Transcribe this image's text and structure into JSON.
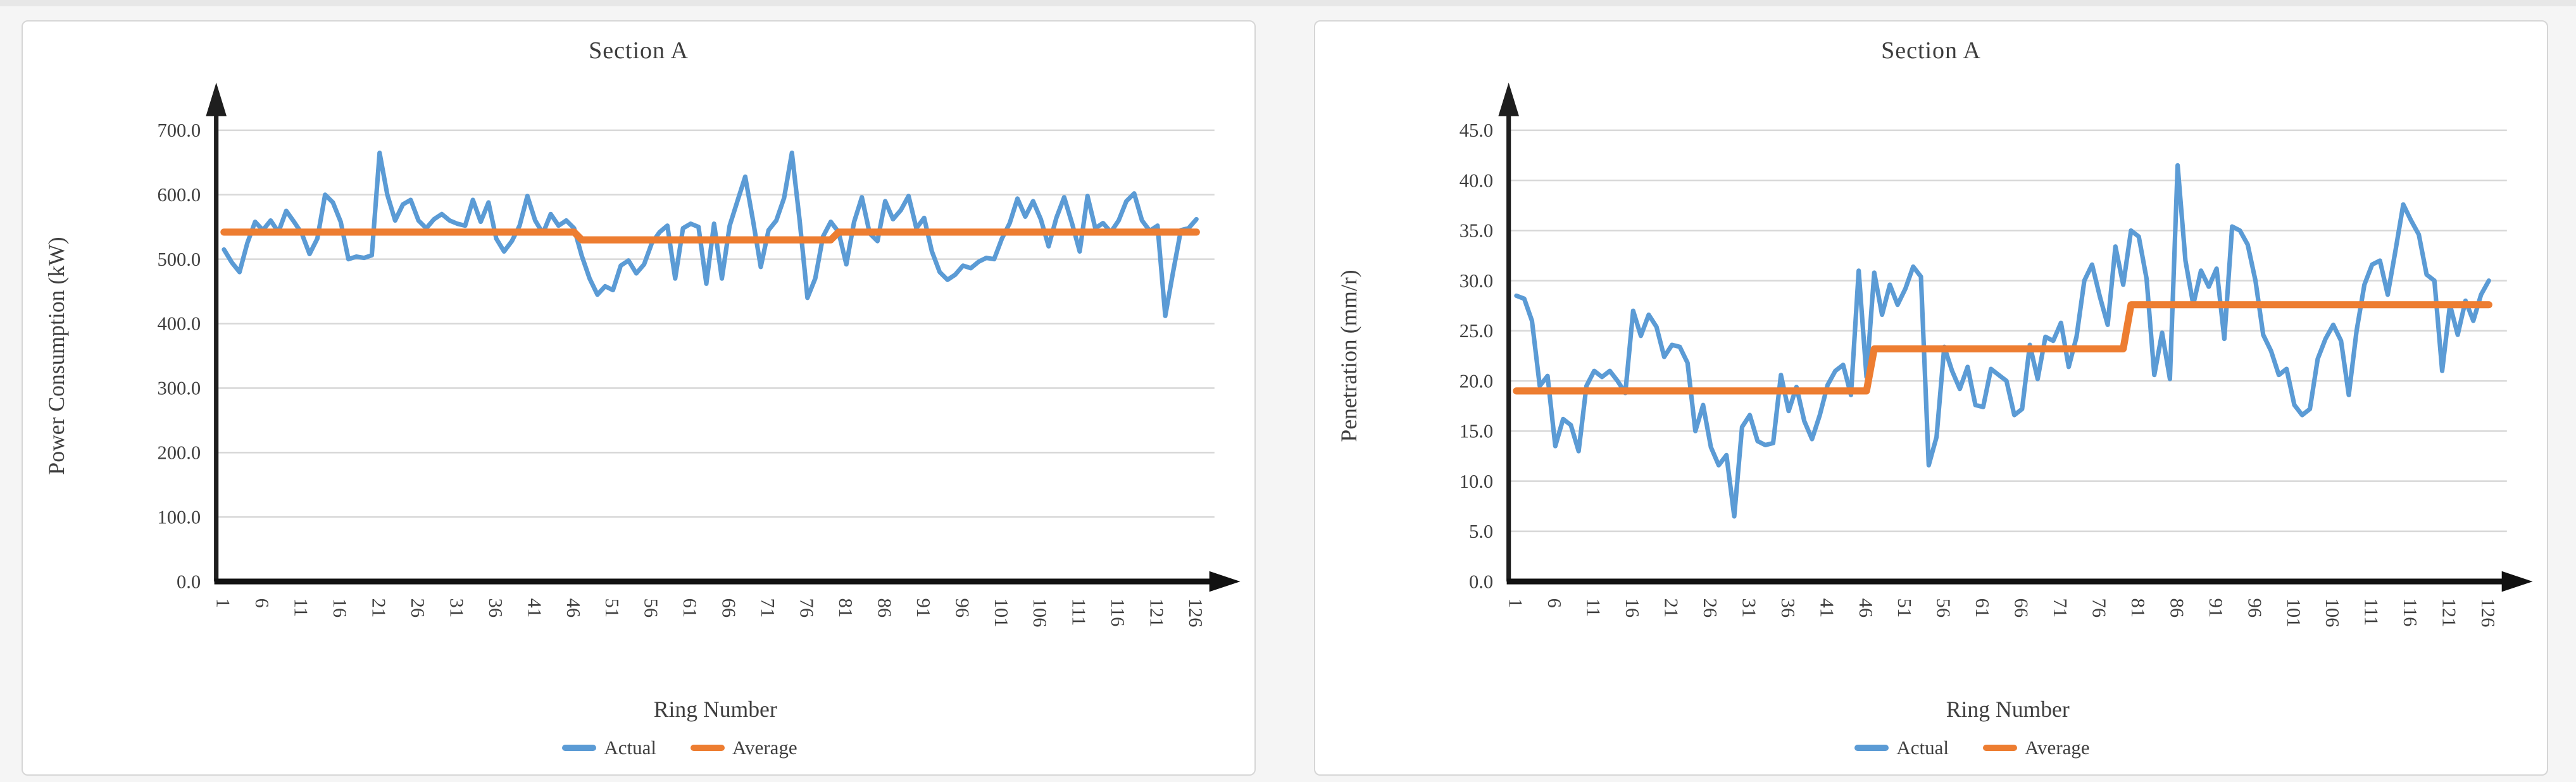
{
  "chart_data": [
    {
      "type": "line",
      "title": "Section A",
      "xlabel": "Ring Number",
      "ylabel": "Power Consumption (kW)",
      "x_range": [
        1,
        126
      ],
      "ylim": [
        0,
        700
      ],
      "grid": true,
      "legend_position": "bottom",
      "ytick_labels": [
        "0.0",
        "100.0",
        "200.0",
        "300.0",
        "400.0",
        "500.0",
        "600.0",
        "700.0"
      ],
      "xtick_labels": [
        "1",
        "6",
        "11",
        "16",
        "21",
        "26",
        "31",
        "36",
        "41",
        "46",
        "51",
        "56",
        "61",
        "66",
        "71",
        "76",
        "81",
        "86",
        "91",
        "96",
        "101",
        "106",
        "111",
        "116",
        "121",
        "126"
      ],
      "series": [
        {
          "name": "Actual",
          "color": "#5B9BD5",
          "values": [
            515,
            495,
            480,
            525,
            558,
            545,
            560,
            542,
            575,
            558,
            540,
            508,
            532,
            600,
            588,
            558,
            500,
            504,
            502,
            506,
            665,
            600,
            560,
            585,
            592,
            560,
            548,
            562,
            570,
            560,
            555,
            552,
            592,
            558,
            588,
            532,
            512,
            528,
            552,
            598,
            560,
            540,
            570,
            552,
            560,
            548,
            505,
            470,
            445,
            458,
            452,
            490,
            498,
            478,
            492,
            525,
            542,
            552,
            470,
            548,
            555,
            550,
            462,
            555,
            470,
            552,
            590,
            628,
            560,
            488,
            545,
            560,
            595,
            665,
            560,
            440,
            470,
            535,
            558,
            542,
            492,
            558,
            596,
            540,
            528,
            590,
            562,
            576,
            598,
            548,
            564,
            512,
            480,
            468,
            476,
            490,
            486,
            496,
            502,
            500,
            532,
            556,
            594,
            566,
            590,
            562,
            520,
            564,
            596,
            556,
            512,
            598,
            548,
            556,
            542,
            560,
            590,
            602,
            560,
            544,
            552,
            412,
            480,
            545,
            548,
            562
          ]
        },
        {
          "name": "Average",
          "color": "#ED7D31",
          "values": [
            542,
            542,
            542,
            542,
            542,
            542,
            542,
            542,
            542,
            542,
            542,
            542,
            542,
            542,
            542,
            542,
            542,
            542,
            542,
            542,
            542,
            542,
            542,
            542,
            542,
            542,
            542,
            542,
            542,
            542,
            542,
            542,
            542,
            542,
            542,
            542,
            542,
            542,
            542,
            542,
            542,
            542,
            542,
            542,
            542,
            542,
            530,
            530,
            530,
            530,
            530,
            530,
            530,
            530,
            530,
            530,
            530,
            530,
            530,
            530,
            530,
            530,
            530,
            530,
            530,
            530,
            530,
            530,
            530,
            530,
            530,
            530,
            530,
            530,
            530,
            530,
            530,
            530,
            530,
            542,
            542,
            542,
            542,
            542,
            542,
            542,
            542,
            542,
            542,
            542,
            542,
            542,
            542,
            542,
            542,
            542,
            542,
            542,
            542,
            542,
            542,
            542,
            542,
            542,
            542,
            542,
            542,
            542,
            542,
            542,
            542,
            542,
            542,
            542,
            542,
            542,
            542,
            542,
            542,
            542,
            542,
            542,
            542,
            542,
            542,
            542
          ]
        }
      ]
    },
    {
      "type": "line",
      "title": "Section A",
      "xlabel": "Ring Number",
      "ylabel": "Penetration (mm/r)",
      "x_range": [
        1,
        126
      ],
      "ylim": [
        0,
        45
      ],
      "grid": true,
      "legend_position": "bottom",
      "ytick_labels": [
        "0.0",
        "5.0",
        "10.0",
        "15.0",
        "20.0",
        "25.0",
        "30.0",
        "35.0",
        "40.0",
        "45.0"
      ],
      "xtick_labels": [
        "1",
        "6",
        "11",
        "16",
        "21",
        "26",
        "31",
        "36",
        "41",
        "46",
        "51",
        "56",
        "61",
        "66",
        "71",
        "76",
        "81",
        "86",
        "91",
        "96",
        "101",
        "106",
        "111",
        "116",
        "121",
        "126"
      ],
      "series": [
        {
          "name": "Actual",
          "color": "#5B9BD5",
          "values": [
            28.5,
            28.2,
            26.0,
            19.5,
            20.5,
            13.5,
            16.2,
            15.6,
            13.0,
            19.5,
            21.0,
            20.4,
            21.0,
            20.0,
            18.8,
            27.0,
            24.5,
            26.6,
            25.4,
            22.4,
            23.6,
            23.4,
            21.8,
            15.0,
            17.6,
            13.4,
            11.6,
            12.6,
            6.5,
            15.4,
            16.6,
            14.0,
            13.6,
            13.8,
            20.6,
            17.0,
            19.4,
            16.0,
            14.2,
            16.6,
            19.6,
            21.0,
            21.6,
            18.6,
            31.0,
            20.4,
            30.8,
            26.6,
            29.6,
            27.6,
            29.2,
            31.4,
            30.4,
            11.6,
            14.4,
            23.4,
            21.0,
            19.2,
            21.4,
            17.6,
            17.4,
            21.2,
            20.6,
            20.0,
            16.6,
            17.2,
            23.6,
            20.2,
            24.4,
            24.0,
            25.8,
            21.4,
            24.4,
            30.0,
            31.6,
            28.4,
            25.6,
            33.4,
            29.6,
            35.0,
            34.4,
            30.2,
            20.6,
            24.8,
            20.2,
            41.5,
            32.0,
            27.6,
            31.0,
            29.4,
            31.2,
            24.2,
            35.4,
            35.0,
            33.6,
            30.0,
            24.6,
            23.0,
            20.6,
            21.2,
            17.6,
            16.6,
            17.2,
            22.2,
            24.2,
            25.6,
            24.0,
            18.6,
            25.0,
            29.6,
            31.6,
            32.0,
            28.6,
            33.0,
            37.6,
            36.0,
            34.6,
            30.6,
            30.0,
            21.0,
            27.6,
            24.6,
            28.0,
            26.0,
            28.6,
            30.0
          ]
        },
        {
          "name": "Average",
          "color": "#ED7D31",
          "values": [
            19.0,
            19.0,
            19.0,
            19.0,
            19.0,
            19.0,
            19.0,
            19.0,
            19.0,
            19.0,
            19.0,
            19.0,
            19.0,
            19.0,
            19.0,
            19.0,
            19.0,
            19.0,
            19.0,
            19.0,
            19.0,
            19.0,
            19.0,
            19.0,
            19.0,
            19.0,
            19.0,
            19.0,
            19.0,
            19.0,
            19.0,
            19.0,
            19.0,
            19.0,
            19.0,
            19.0,
            19.0,
            19.0,
            19.0,
            19.0,
            19.0,
            19.0,
            19.0,
            19.0,
            19.0,
            19.0,
            23.2,
            23.2,
            23.2,
            23.2,
            23.2,
            23.2,
            23.2,
            23.2,
            23.2,
            23.2,
            23.2,
            23.2,
            23.2,
            23.2,
            23.2,
            23.2,
            23.2,
            23.2,
            23.2,
            23.2,
            23.2,
            23.2,
            23.2,
            23.2,
            23.2,
            23.2,
            23.2,
            23.2,
            23.2,
            23.2,
            23.2,
            23.2,
            23.2,
            27.6,
            27.6,
            27.6,
            27.6,
            27.6,
            27.6,
            27.6,
            27.6,
            27.6,
            27.6,
            27.6,
            27.6,
            27.6,
            27.6,
            27.6,
            27.6,
            27.6,
            27.6,
            27.6,
            27.6,
            27.6,
            27.6,
            27.6,
            27.6,
            27.6,
            27.6,
            27.6,
            27.6,
            27.6,
            27.6,
            27.6,
            27.6,
            27.6,
            27.6,
            27.6,
            27.6,
            27.6,
            27.6,
            27.6,
            27.6,
            27.6,
            27.6,
            27.6,
            27.6,
            27.6,
            27.6,
            27.6
          ]
        }
      ]
    }
  ]
}
